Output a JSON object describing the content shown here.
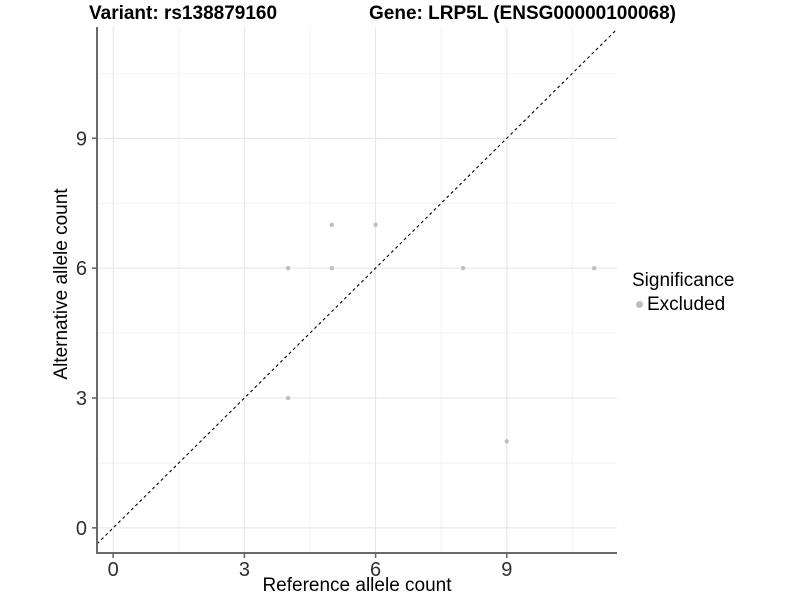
{
  "chart_data": {
    "type": "scatter",
    "title_left": "Variant: rs138879160",
    "title_right": "Gene: LRP5L (ENSG00000100068)",
    "xlabel": "Reference allele count",
    "ylabel": "Alternative allele count",
    "xlim": [
      -0.37,
      11.52
    ],
    "ylim": [
      -0.58,
      11.57
    ],
    "x_ticks": [
      0,
      3,
      6,
      9
    ],
    "y_ticks": [
      0,
      3,
      6,
      9
    ],
    "x_minor_gridlines": [
      1.5,
      4.5,
      7.5,
      10.5
    ],
    "y_minor_gridlines": [
      1.5,
      4.5,
      7.5,
      10.5
    ],
    "grid": true,
    "identity_line": {
      "equation": "y = x",
      "style": "dashed",
      "color": "#000000"
    },
    "series": [
      {
        "name": "Excluded",
        "color": "#bfbfbf",
        "points": [
          [
            4,
            3
          ],
          [
            4,
            6
          ],
          [
            5,
            6
          ],
          [
            5,
            7
          ],
          [
            6,
            7
          ],
          [
            8,
            6
          ],
          [
            9,
            2
          ],
          [
            11,
            6
          ]
        ]
      }
    ],
    "legend": {
      "title": "Significance",
      "position": "right",
      "entries": [
        {
          "label": "Excluded",
          "color": "#bfbfbf",
          "marker": "dot-icon"
        }
      ]
    },
    "styles": {
      "major_grid_color": "#e4e4e4",
      "minor_grid_color": "#f2f2f2",
      "axis_line_color": "#696969",
      "tick_label_color": "#303030",
      "point_radius": 2.2
    }
  }
}
